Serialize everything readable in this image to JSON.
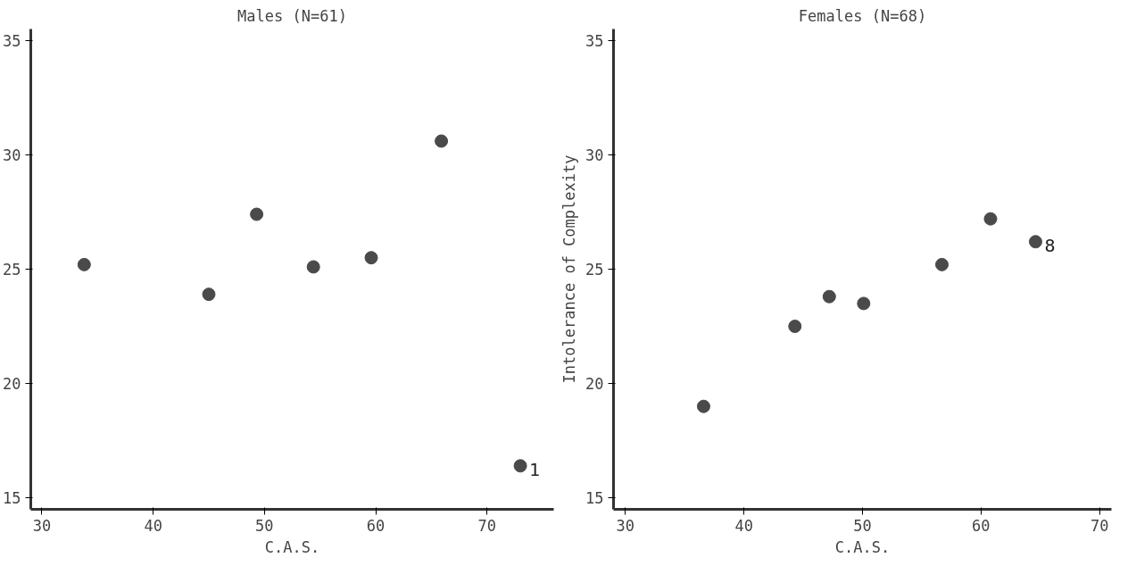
{
  "chart_data": [
    {
      "type": "scatter",
      "title": "Males (N=61)",
      "xlabel": "C.A.S.",
      "x": [
        33.8,
        45.0,
        49.3,
        54.4,
        59.6,
        65.9,
        73.0
      ],
      "values": [
        25.2,
        23.9,
        27.4,
        25.1,
        25.5,
        30.6,
        16.4
      ],
      "color": "#4a4a4a",
      "marker": "circle",
      "xlim": [
        29,
        76
      ],
      "ylim": [
        14.5,
        35.5
      ],
      "xticks": [
        30,
        40,
        50,
        60,
        70
      ],
      "yticks": [
        15,
        20,
        25,
        30,
        35
      ],
      "grid": false,
      "annotations": [
        {
          "text": "1",
          "x": 73.0,
          "y": 16.4
        }
      ]
    },
    {
      "type": "scatter",
      "title": "Females (N=68)",
      "xlabel": "C.A.S.",
      "ylabel": "Intolerance of Complexity",
      "x": [
        36.6,
        44.3,
        47.2,
        50.1,
        56.7,
        60.8,
        64.6
      ],
      "values": [
        19.0,
        22.5,
        23.8,
        23.5,
        25.2,
        27.2,
        26.2
      ],
      "color": "#4a4a4a",
      "marker": "circle",
      "xlim": [
        29,
        71
      ],
      "ylim": [
        14.5,
        35.5
      ],
      "xticks": [
        30,
        40,
        50,
        60,
        70
      ],
      "yticks": [
        15,
        20,
        25,
        30,
        35
      ],
      "grid": false,
      "annotations": [
        {
          "text": "8",
          "x": 64.6,
          "y": 26.2
        }
      ]
    }
  ]
}
